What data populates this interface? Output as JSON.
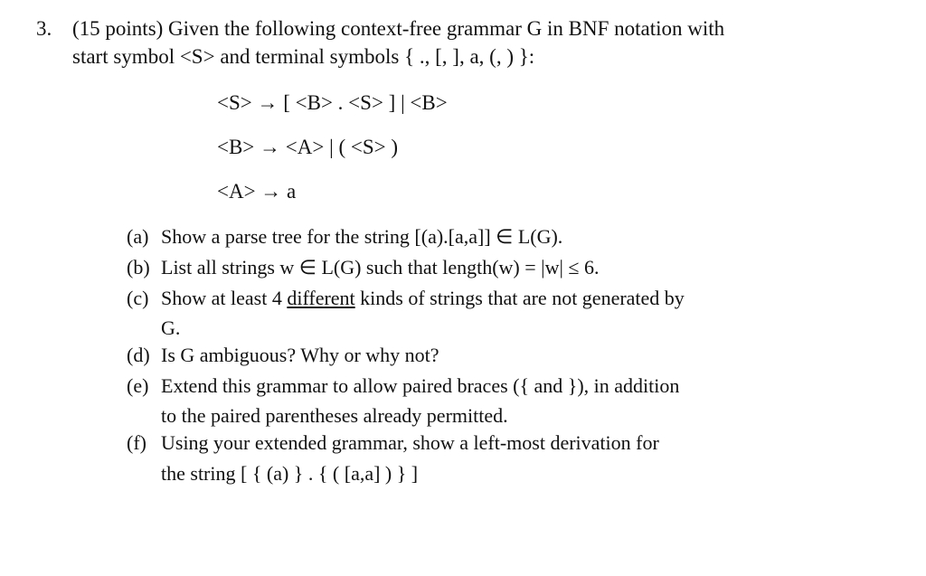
{
  "colors": {
    "text": "#111111",
    "background": "#ffffff"
  },
  "typography": {
    "font_family": "Times New Roman",
    "base_fontsize_pt": 17,
    "parts_fontsize_pt": 16
  },
  "question": {
    "number": "3.",
    "intro_line1": "(15 points) Given the following context-free grammar G in BNF notation with",
    "intro_line2": "start symbol <S> and terminal symbols { ., [, ], a, (, ) }:"
  },
  "grammar": {
    "rule_S": "<S> → [ <B> . <S> ]  |  <B>",
    "rule_B": "<B> → <A>  |  ( <S> )",
    "rule_A": "<A> → a"
  },
  "parts": {
    "a": {
      "label": "(a)",
      "text": "Show a parse tree for the string  [(a).[a,a]] ∈ L(G)."
    },
    "b": {
      "label": "(b)",
      "text": "List all strings w ∈ L(G) such that length(w) = |w|  ≤  6."
    },
    "c": {
      "label": "(c)",
      "text_prefix": "Show at least 4 ",
      "underlined": "different",
      "text_suffix": " kinds of strings that are not generated by",
      "cont": "G."
    },
    "d": {
      "label": "(d)",
      "text": "Is G ambiguous?  Why or why not?"
    },
    "e": {
      "label": "(e)",
      "text": "Extend this grammar to allow paired braces ({ and }), in addition",
      "cont": "to the paired parentheses already permitted."
    },
    "f": {
      "label": "(f)",
      "text": "Using your extended grammar, show a left-most derivation for",
      "cont": "the string [ { (a) } . { ( [a,a] ) } ]"
    }
  }
}
